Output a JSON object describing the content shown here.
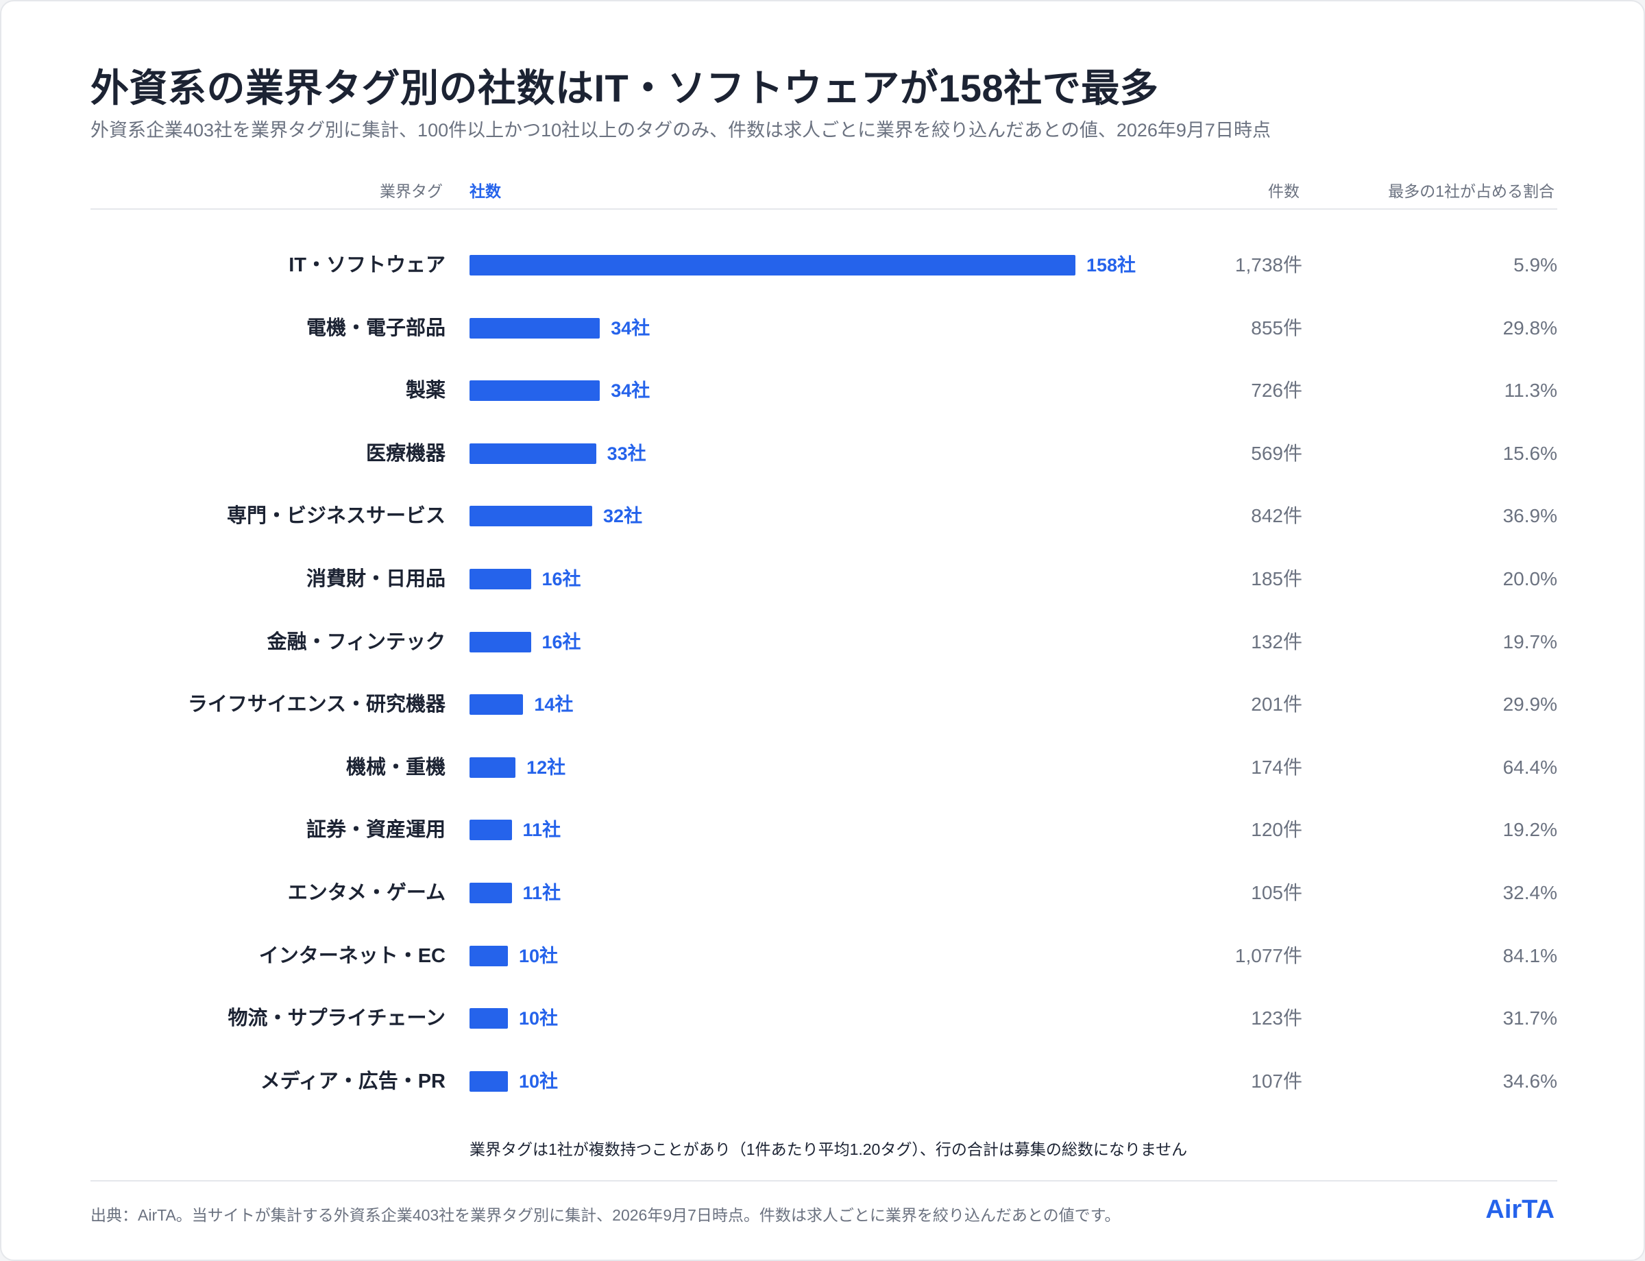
{
  "title": "外資系の業界タグ別の社数はIT・ソフトウェアが158社で最多",
  "subtitle": "外資系企業403社を業界タグ別に集計、100件以上かつ10社以上のタグのみ、件数は求人ごとに業界を絞り込んだあとの値、2026年9月7日時点",
  "columns": {
    "tag": "業界タグ",
    "companies": "社数",
    "jobs": "件数",
    "share": "最多の1社が占める割合"
  },
  "colors": {
    "bar": "#2563eb",
    "label": "#1c2333",
    "muted": "#6b7280"
  },
  "chart_data": {
    "type": "bar",
    "orientation": "horizontal",
    "categories": [
      "IT・ソフトウェア",
      "電機・電子部品",
      "製薬",
      "医療機器",
      "専門・ビジネスサービス",
      "消費財・日用品",
      "金融・フィンテック",
      "ライフサイエンス・研究機器",
      "機械・重機",
      "証券・資産運用",
      "エンタメ・ゲーム",
      "インターネット・EC",
      "物流・サプライチェーン",
      "メディア・広告・PR"
    ],
    "values": [
      158,
      34,
      34,
      33,
      32,
      16,
      16,
      14,
      12,
      11,
      11,
      10,
      10,
      10
    ],
    "value_labels": [
      "158社",
      "34社",
      "34社",
      "33社",
      "32社",
      "16社",
      "16社",
      "14社",
      "12社",
      "11社",
      "11社",
      "10社",
      "10社",
      "10社"
    ],
    "jobs": [
      "1,738件",
      "855件",
      "726件",
      "569件",
      "842件",
      "185件",
      "132件",
      "201件",
      "174件",
      "120件",
      "105件",
      "1,077件",
      "123件",
      "107件"
    ],
    "top_share": [
      "5.9%",
      "29.8%",
      "11.3%",
      "15.6%",
      "36.9%",
      "20.0%",
      "19.7%",
      "29.9%",
      "64.4%",
      "19.2%",
      "32.4%",
      "84.1%",
      "31.7%",
      "34.6%"
    ],
    "xlim": [
      0,
      158
    ],
    "grid": false,
    "legend": "none"
  },
  "note": "業界タグは1社が複数持つことがあり（1件あたり平均1.20タグ）、行の合計は募集の総数になりません",
  "source": "出典：AirTA。当サイトが集計する外資系企業403社を業界タグ別に集計、2026年9月7日時点。件数は求人ごとに業界を絞り込んだあとの値です。",
  "logo": "AirTA"
}
